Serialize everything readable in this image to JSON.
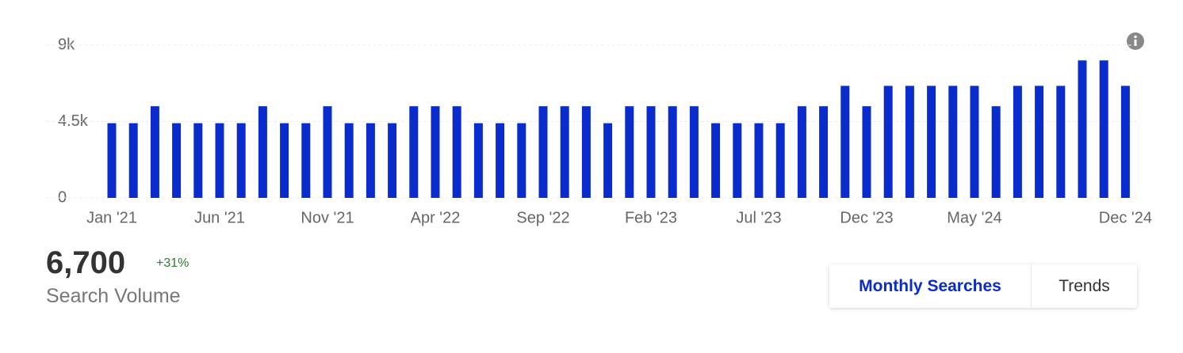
{
  "chart_data": {
    "type": "bar",
    "categories": [
      "Jan '21",
      null,
      null,
      null,
      null,
      "Jun '21",
      null,
      null,
      null,
      null,
      "Nov '21",
      null,
      null,
      null,
      null,
      "Apr '22",
      null,
      null,
      null,
      null,
      "Sep '22",
      null,
      null,
      null,
      null,
      "Feb '23",
      null,
      null,
      null,
      null,
      "Jul '23",
      null,
      null,
      null,
      null,
      "Dec '23",
      null,
      null,
      null,
      null,
      "May '24",
      null,
      null,
      null,
      null,
      null,
      null,
      "Dec '24"
    ],
    "values": [
      4400,
      4400,
      5400,
      4400,
      4400,
      4400,
      4400,
      5400,
      4400,
      4400,
      5400,
      4400,
      4400,
      4400,
      5400,
      5400,
      5400,
      4400,
      4400,
      4400,
      5400,
      5400,
      5400,
      4400,
      5400,
      5400,
      5400,
      5400,
      4400,
      4400,
      4400,
      4400,
      5400,
      5400,
      6600,
      5400,
      6600,
      6600,
      6600,
      6600,
      6600,
      5400,
      6600,
      6600,
      6600,
      8100,
      8100,
      6600
    ],
    "color": "#0a2ccc",
    "ylim": [
      0,
      9000
    ],
    "yticks": [
      0,
      {
        "value": 4500,
        "label": "4.5k"
      },
      {
        "value": 9000,
        "label": "9k"
      }
    ],
    "grid": true
  },
  "summary": {
    "value": "6,700",
    "change": "+31%",
    "label": "Search Volume"
  },
  "tabs": [
    "Monthly Searches",
    "Trends"
  ]
}
